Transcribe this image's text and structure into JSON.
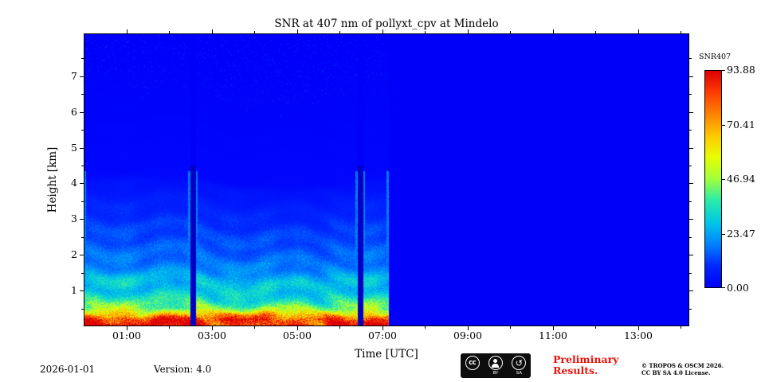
{
  "figure": {
    "title": "SNR at 407 nm of pollyxt_cpv at Mindelo",
    "footer": {
      "date": "2026-01-01",
      "version": "Version: 4.0",
      "preliminary_line1": "Preliminary",
      "preliminary_line2": "Results.",
      "copyright_line1": "© TROPOS & OSCM 2026.",
      "copyright_line2": "CC BY SA 4.0 License."
    },
    "badge": {
      "cc": "cc",
      "by": "BY",
      "sa": "SA"
    }
  },
  "chart_data": {
    "type": "heatmap",
    "title": "SNR at 407 nm of pollyxt_cpv at Mindelo",
    "xlabel": "Time [UTC]",
    "ylabel": "Height [km]",
    "x_range_hours": [
      0,
      14.2
    ],
    "y_range_km": [
      0,
      8.2
    ],
    "x_ticks": {
      "hours": [
        1,
        3,
        5,
        7,
        9,
        11,
        13
      ],
      "labels": [
        "01:00",
        "03:00",
        "05:00",
        "07:00",
        "09:00",
        "11:00",
        "13:00"
      ]
    },
    "x_minor_hours": [
      0,
      2,
      4,
      6,
      8,
      10,
      12,
      14
    ],
    "y_ticks": {
      "km": [
        1,
        2,
        3,
        4,
        5,
        6,
        7
      ],
      "labels": [
        "1",
        "2",
        "3",
        "4",
        "5",
        "6",
        "7"
      ]
    },
    "colorbar": {
      "label": "SNR407",
      "vmin": 0,
      "vmax": 93.88,
      "ticks": [
        0.0,
        23.47,
        46.94,
        70.41,
        93.88
      ],
      "tick_labels": [
        "0.00",
        "23.47",
        "46.94",
        "70.41",
        "93.88"
      ],
      "position": "right"
    },
    "colormap": [
      [
        0.0,
        0,
        0,
        250
      ],
      [
        0.1,
        0,
        40,
        255
      ],
      [
        0.2,
        0,
        130,
        255
      ],
      [
        0.3,
        0,
        200,
        230
      ],
      [
        0.4,
        40,
        235,
        170
      ],
      [
        0.5,
        160,
        255,
        60
      ],
      [
        0.6,
        230,
        255,
        0
      ],
      [
        0.7,
        255,
        200,
        0
      ],
      [
        0.8,
        255,
        130,
        0
      ],
      [
        0.9,
        255,
        60,
        0
      ],
      [
        1.0,
        220,
        0,
        0
      ]
    ],
    "measurement": {
      "start_hour": 0.0,
      "end_hour": 7.15,
      "gaps": [
        {
          "start": 2.5,
          "end": 2.63
        },
        {
          "start": 6.42,
          "end": 6.55
        }
      ]
    },
    "profile": {
      "heights_km": [
        0,
        0.2,
        0.35,
        0.5,
        0.7,
        1.0,
        1.5,
        2.0,
        2.5,
        3.0,
        3.5,
        4.0,
        4.2,
        8.2
      ],
      "snr": [
        92,
        89,
        66,
        46,
        36,
        28,
        21,
        16,
        13,
        10,
        7,
        4,
        1.5,
        0
      ]
    },
    "background_snr": 0,
    "grid": false
  }
}
